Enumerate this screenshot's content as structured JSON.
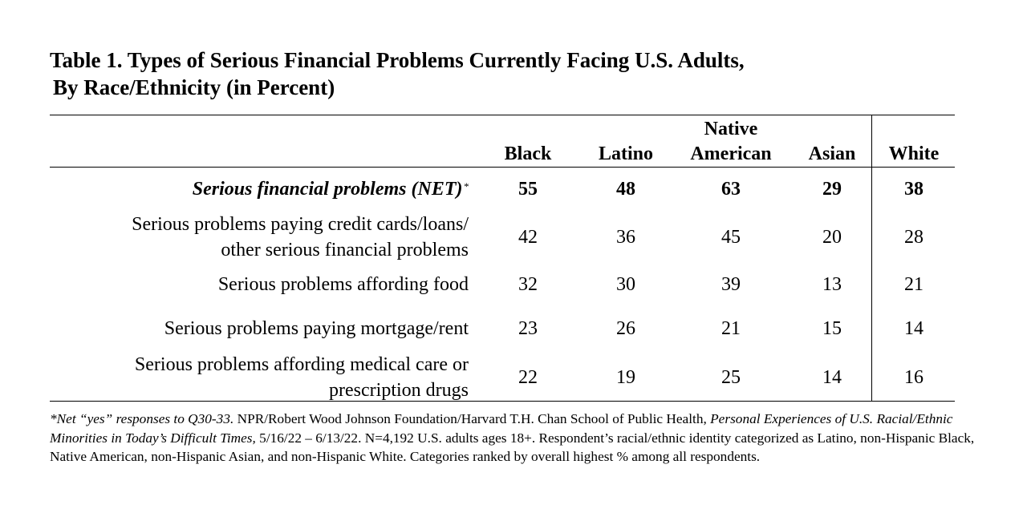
{
  "title": {
    "line1": "Table 1. Types of Serious Financial Problems Currently Facing U.S. Adults,",
    "line2": "By Race/Ethnicity (in Percent)"
  },
  "columns": [
    {
      "line1": "",
      "line2": "Black"
    },
    {
      "line1": "",
      "line2": "Latino"
    },
    {
      "line1": "Native",
      "line2": "American"
    },
    {
      "line1": "",
      "line2": "Asian"
    },
    {
      "line1": "",
      "line2": "White"
    }
  ],
  "rows": [
    {
      "label_line1": "Serious financial problems (NET)",
      "label_line2": "",
      "marker": "*",
      "values": [
        "55",
        "48",
        "63",
        "29",
        "38"
      ]
    },
    {
      "label_line1": "Serious problems paying credit cards/loans/",
      "label_line2": "other serious financial problems",
      "marker": "",
      "values": [
        "42",
        "36",
        "45",
        "20",
        "28"
      ]
    },
    {
      "label_line1": "Serious problems affording food",
      "label_line2": "",
      "marker": "",
      "values": [
        "32",
        "30",
        "39",
        "13",
        "21"
      ]
    },
    {
      "label_line1": "Serious problems paying mortgage/rent",
      "label_line2": "",
      "marker": "",
      "values": [
        "23",
        "26",
        "21",
        "15",
        "14"
      ]
    },
    {
      "label_line1": "Serious problems affording medical care or",
      "label_line2": "prescription drugs",
      "marker": "",
      "values": [
        "22",
        "19",
        "25",
        "14",
        "16"
      ]
    }
  ],
  "footnote": {
    "part1_italic": "*Net “yes” responses to Q30-33.",
    "part2": " NPR/Robert Wood Johnson Foundation/Harvard T.H. Chan School of Public Health, ",
    "part3_italic": "Personal Experiences of U.S. Racial/Ethnic Minorities in Today’s Difficult Times,",
    "part4": " 5/16/22 – 6/13/22. N=4,192 U.S. adults ages 18+. Respondent’s racial/ethnic identity categorized as Latino, non-Hispanic Black, Native American, non-Hispanic Asian, and non-Hispanic White. Categories ranked by overall highest % among all respondents."
  }
}
